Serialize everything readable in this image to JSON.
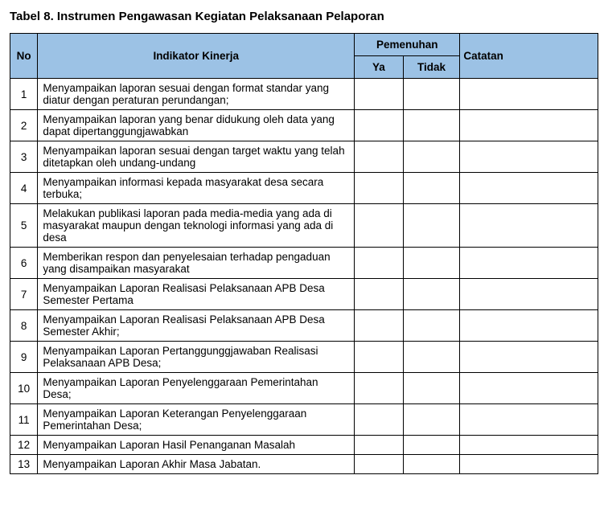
{
  "title": "Tabel 8. Instrumen Pengawasan Kegiatan Pelaksanaan Pelaporan",
  "headers": {
    "no": "No",
    "indikator": "Indikator Kinerja",
    "pemenuhan": "Pemenuhan",
    "ya": "Ya",
    "tidak": "Tidak",
    "catatan": "Catatan"
  },
  "rows": [
    {
      "no": "1",
      "indikator": "Menyampaikan laporan sesuai dengan format standar yang diatur dengan peraturan perundangan;",
      "ya": "",
      "tidak": "",
      "catatan": ""
    },
    {
      "no": "2",
      "indikator": "Menyampaikan laporan yang benar didukung oleh data yang dapat dipertanggungjawabkan",
      "ya": "",
      "tidak": "",
      "catatan": ""
    },
    {
      "no": "3",
      "indikator": "Menyampaikan laporan sesuai dengan target waktu yang telah ditetapkan oleh undang-undang",
      "ya": "",
      "tidak": "",
      "catatan": ""
    },
    {
      "no": "4",
      "indikator": "Menyampaikan informasi kepada masyarakat desa secara terbuka;",
      "ya": "",
      "tidak": "",
      "catatan": ""
    },
    {
      "no": "5",
      "indikator": "Melakukan publikasi laporan pada media-media yang ada di masyarakat maupun dengan teknologi informasi yang ada di desa",
      "ya": "",
      "tidak": "",
      "catatan": ""
    },
    {
      "no": "6",
      "indikator": "Memberikan respon  dan  penyelesaian  terhadap pengaduan yang disampaikan masyarakat",
      "ya": "",
      "tidak": "",
      "catatan": ""
    },
    {
      "no": "7",
      "indikator": "Menyampaikan Laporan Realisasi Pelaksanaan APB Desa Semester Pertama",
      "ya": "",
      "tidak": "",
      "catatan": ""
    },
    {
      "no": "8",
      "indikator": "Menyampaikan Laporan Realisasi Pelaksanaan APB Desa Semester Akhir;",
      "ya": "",
      "tidak": "",
      "catatan": ""
    },
    {
      "no": "9",
      "indikator": "Menyampaikan Laporan Pertanggunggjawaban Realisasi Pelaksanaan APB Desa;",
      "ya": "",
      "tidak": "",
      "catatan": ""
    },
    {
      "no": "10",
      "indikator": "Menyampaikan Laporan Penyelenggaraan Pemerintahan Desa;",
      "ya": "",
      "tidak": "",
      "catatan": ""
    },
    {
      "no": "11",
      "indikator": "Menyampaikan Laporan Keterangan Penyelenggaraan Pemerintahan Desa;",
      "ya": "",
      "tidak": "",
      "catatan": ""
    },
    {
      "no": "12",
      "indikator": "Menyampaikan Laporan Hasil Penanganan Masalah",
      "ya": "",
      "tidak": "",
      "catatan": ""
    },
    {
      "no": "13",
      "indikator": "Menyampaikan Laporan Akhir Masa Jabatan.",
      "ya": "",
      "tidak": "",
      "catatan": ""
    }
  ],
  "styles": {
    "header_bg": "#9cc2e5",
    "border_color": "#000000",
    "font_family": "Arial",
    "title_fontsize": 15,
    "cell_fontsize": 13.5,
    "col_widths": {
      "no": 34,
      "indikator": 390,
      "ya": 60,
      "tidak": 70,
      "catatan": 170
    }
  }
}
